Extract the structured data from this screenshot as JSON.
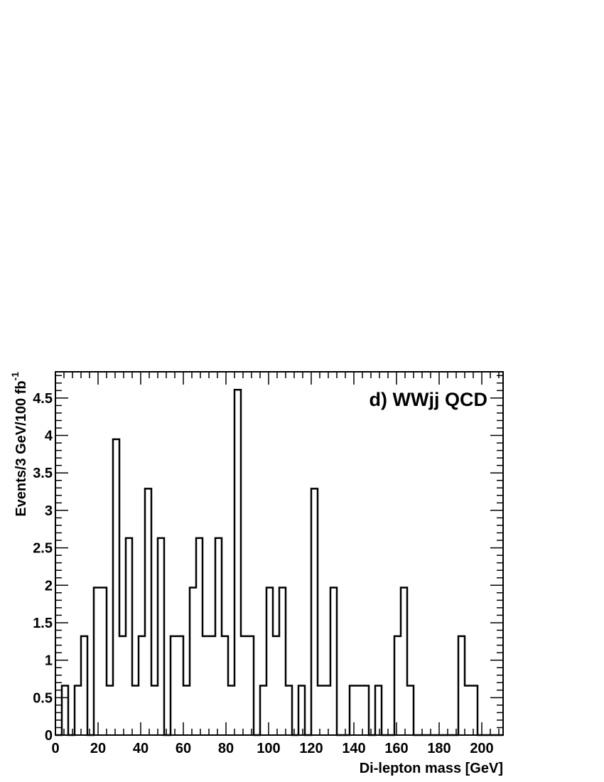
{
  "chart_data": {
    "type": "bar",
    "subtype": "step-histogram",
    "title": "",
    "annotation": "d) WWjj QCD",
    "xlabel": "Di-lepton mass [GeV]",
    "ylabel_main": "Events/3 GeV/100 fb",
    "ylabel_sup": "-1",
    "xlim": [
      0,
      210
    ],
    "ylim": [
      0,
      4.85
    ],
    "bin_width": 3,
    "x_ticks": [
      0,
      20,
      40,
      60,
      80,
      100,
      120,
      140,
      160,
      180,
      200
    ],
    "x_tick_labels": [
      "0",
      "20",
      "40",
      "60",
      "80",
      "100",
      "120",
      "140",
      "160",
      "180",
      "200"
    ],
    "y_ticks": [
      0,
      0.5,
      1,
      1.5,
      2,
      2.5,
      3,
      3.5,
      4,
      4.5
    ],
    "y_tick_labels": [
      "0",
      "0.5",
      "1",
      "1.5",
      "2",
      "2.5",
      "3",
      "3.5",
      "4",
      "4.5"
    ],
    "grid": false,
    "legend": "none",
    "line_color": "#000000",
    "bin_edges_start": [
      0,
      3,
      6,
      9,
      12,
      15,
      18,
      21,
      24,
      27,
      30,
      33,
      36,
      39,
      42,
      45,
      48,
      51,
      54,
      57,
      60,
      63,
      66,
      69,
      72,
      75,
      78,
      81,
      84,
      87,
      90,
      93,
      96,
      99,
      102,
      105,
      108,
      111,
      114,
      117,
      120,
      123,
      126,
      129,
      132,
      135,
      138,
      141,
      144,
      147,
      150,
      153,
      156,
      159,
      162,
      165,
      168,
      171,
      174,
      177,
      180,
      183,
      186,
      189,
      192,
      195,
      198,
      201,
      204,
      207
    ],
    "values": [
      0,
      0.66,
      0,
      0.66,
      1.32,
      0,
      1.97,
      1.97,
      0.66,
      3.95,
      1.32,
      2.63,
      0.66,
      1.32,
      3.29,
      0.66,
      2.63,
      0,
      1.32,
      1.32,
      0.66,
      1.97,
      2.63,
      1.32,
      1.32,
      2.63,
      1.32,
      0.66,
      4.61,
      1.32,
      1.32,
      0,
      0.66,
      1.97,
      1.32,
      1.97,
      0.66,
      0,
      0.66,
      0,
      3.29,
      0.66,
      0.66,
      1.97,
      0,
      0,
      0.66,
      0.66,
      0.66,
      0,
      0.66,
      0,
      0,
      1.32,
      1.97,
      0.66,
      0,
      0,
      0,
      0,
      0,
      0,
      0,
      1.32,
      0.66,
      0.66,
      0,
      0,
      0,
      0
    ]
  }
}
